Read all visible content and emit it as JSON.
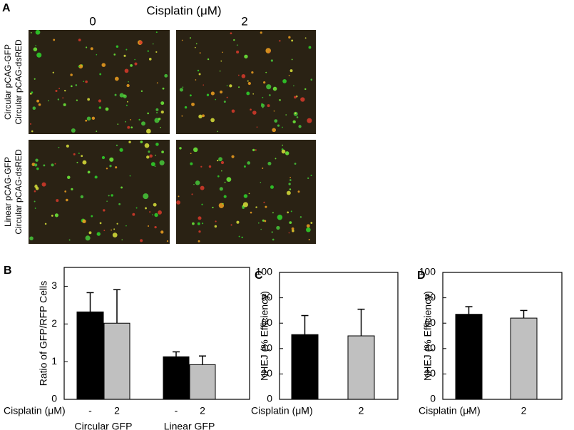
{
  "panel_a": {
    "label": "A",
    "title": "Cisplatin (μM)",
    "columns": [
      "0",
      "2"
    ],
    "rows": [
      [
        "Circular pCAG-GFP",
        "Circular pCAG-dsRED"
      ],
      [
        "Linear pCAG-GFP",
        "Circular pCAG-dsRED"
      ]
    ]
  },
  "chart_data": [
    {
      "type": "bar",
      "panel": "B",
      "ylabel": "Ratio of GFP/RFP Cells",
      "xlabel": "Cisplatin (μM)",
      "categories": [
        "-",
        "2",
        "-",
        "2"
      ],
      "groups": [
        "Circular GFP",
        "Linear GFP"
      ],
      "values": [
        2.32,
        2.02,
        1.13,
        0.92
      ],
      "errors": [
        0.51,
        0.89,
        0.13,
        0.23
      ],
      "colors": [
        "#000000",
        "#c0c0c0",
        "#000000",
        "#c0c0c0"
      ],
      "ylim": [
        0,
        3.5
      ],
      "yticks": [
        0,
        1,
        2,
        3
      ]
    },
    {
      "type": "bar",
      "panel": "C",
      "ylabel": "NHEJ (% Efficiency)",
      "xlabel": "Cisplatin (μM)",
      "categories": [
        "-",
        "2"
      ],
      "values": [
        51,
        50
      ],
      "errors": [
        15,
        21
      ],
      "colors": [
        "#000000",
        "#c0c0c0"
      ],
      "ylim": [
        0,
        100
      ],
      "yticks": [
        0,
        20,
        40,
        60,
        80,
        100
      ]
    },
    {
      "type": "bar",
      "panel": "D",
      "ylabel": "NHEJ (% Efficiency)",
      "xlabel": "Cisplatin (μM)",
      "categories": [
        "-",
        "2"
      ],
      "values": [
        67,
        64
      ],
      "errors": [
        6,
        6
      ],
      "colors": [
        "#000000",
        "#c0c0c0"
      ],
      "ylim": [
        0,
        100
      ],
      "yticks": [
        0,
        20,
        40,
        60,
        80,
        100
      ]
    }
  ]
}
